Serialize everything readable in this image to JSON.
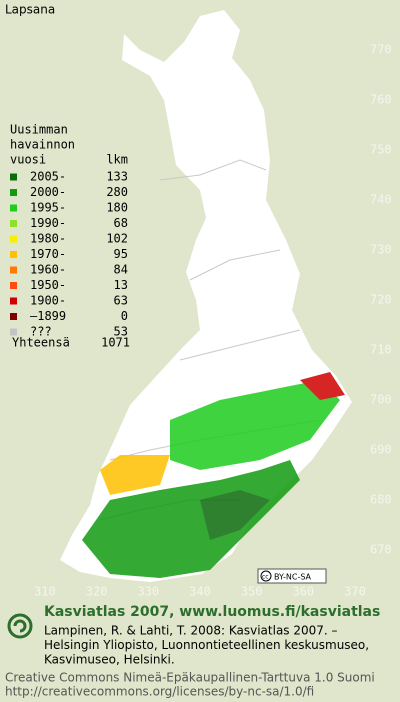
{
  "map": {
    "title": "Lapsana",
    "legend_heading": [
      "Uusimman",
      "havainnon",
      "vuosi"
    ],
    "count_heading": "lkm",
    "legend": [
      {
        "label": "2005-",
        "count": 133,
        "color": "#0b6b0b"
      },
      {
        "label": "2000-",
        "count": 280,
        "color": "#119b11"
      },
      {
        "label": "1995-",
        "count": 180,
        "color": "#1fcc1f"
      },
      {
        "label": "1990-",
        "count": 68,
        "color": "#8fe02a"
      },
      {
        "label": "1980-",
        "count": 102,
        "color": "#f4f000"
      },
      {
        "label": "1970-",
        "count": 95,
        "color": "#ffc000"
      },
      {
        "label": "1960-",
        "count": 84,
        "color": "#ff7a00"
      },
      {
        "label": "1950-",
        "count": 13,
        "color": "#ff4a10"
      },
      {
        "label": "1900-",
        "count": 63,
        "color": "#d00000"
      },
      {
        "label": "–1899",
        "count": 0,
        "color": "#800000"
      },
      {
        "label": "???",
        "count": 53,
        "color": "#c4c4c4"
      }
    ],
    "total_label": "Yhteensä",
    "total": 1071,
    "x_ticks": [
      310,
      320,
      330,
      340,
      350,
      360,
      370
    ],
    "y_ticks": [
      670,
      680,
      690,
      700,
      710,
      720,
      730,
      740,
      750,
      760,
      770
    ],
    "license_badge": "BY-NC-SA"
  },
  "footer": {
    "heading": "Kasviatlas 2007, www.luomus.fi/kasviatlas",
    "citation": [
      "Lampinen, R. & Lahti, T. 2008: Kasviatlas 2007. –",
      "Helsingin Yliopisto, Luonnontieteellinen keskusmuseo,",
      "Kasvimuseo, Helsinki."
    ],
    "license": [
      "Creative Commons Nimeä-Epäkaupallinen-Tarttuva 1.0 Suomi",
      "http://creativecommons.org/licenses/by-nc-sa/1.0/fi"
    ]
  }
}
